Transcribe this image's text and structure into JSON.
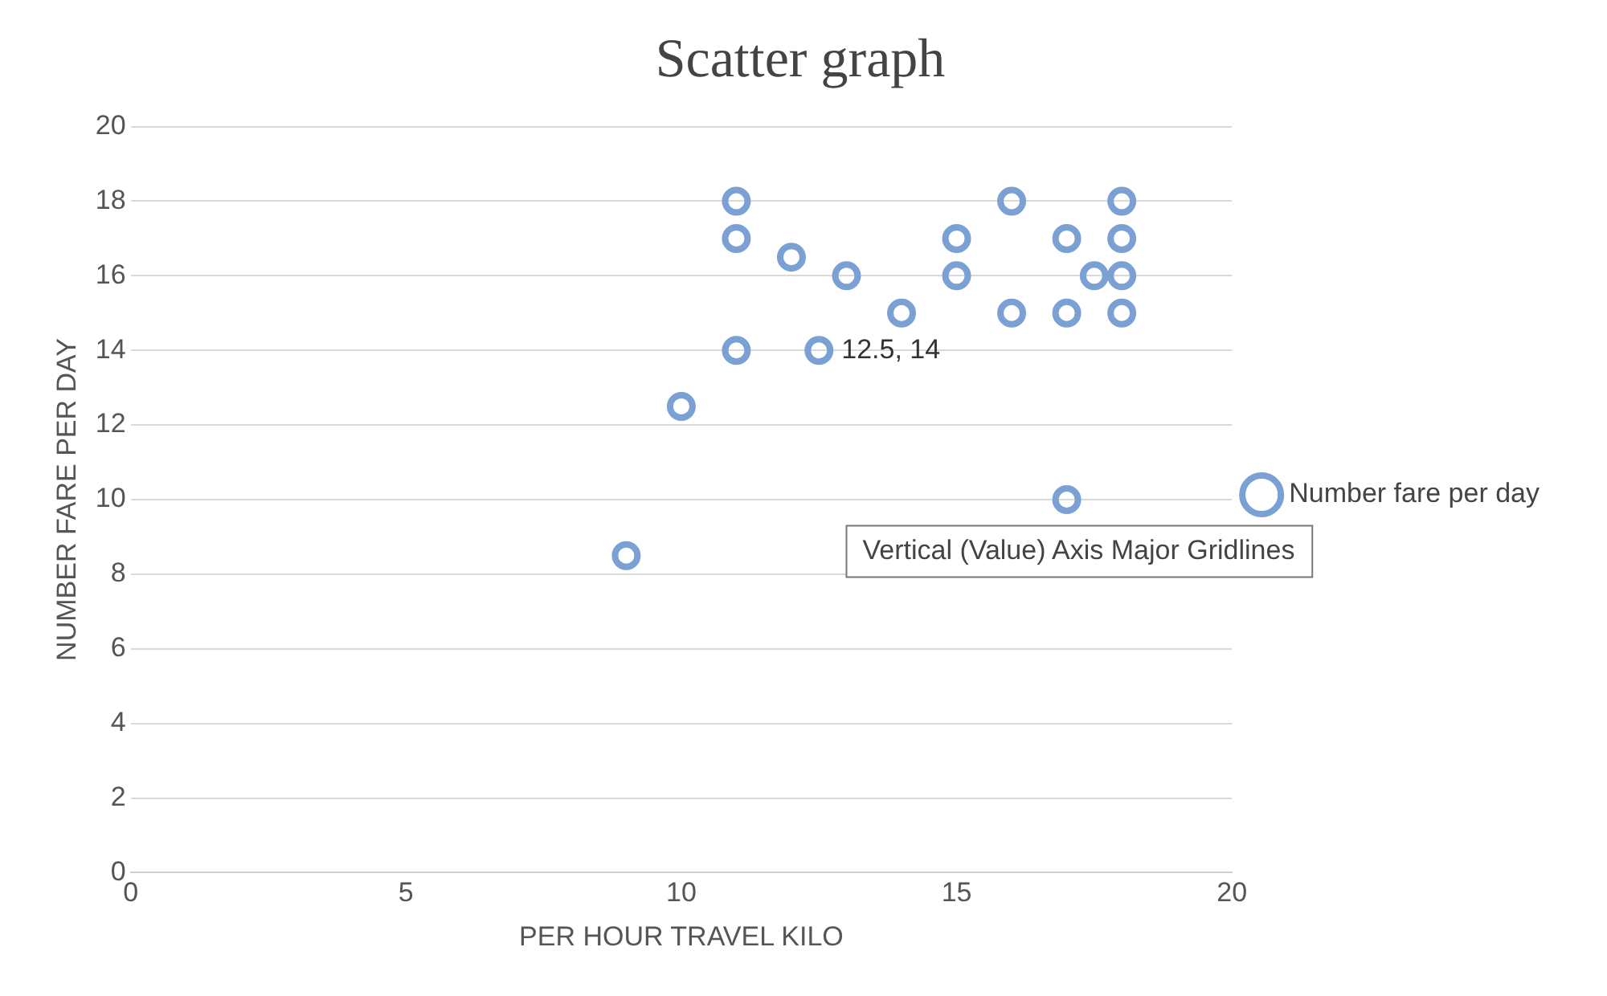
{
  "chart_data": {
    "type": "scatter",
    "title": "Scatter graph",
    "xlabel": "PER HOUR TRAVEL KILO",
    "ylabel": "NUMBER FARE PER DAY",
    "x": [
      9,
      10,
      11,
      11,
      11,
      12,
      12.5,
      13,
      14,
      15,
      15,
      16,
      16,
      17,
      17,
      17,
      17.5,
      18,
      18,
      18,
      18
    ],
    "series": [
      {
        "name": "Number fare per day",
        "color": "#7ba0d4",
        "values": [
          8.5,
          12.5,
          18,
          17,
          14,
          16.5,
          14,
          16,
          15,
          17,
          16,
          18,
          15,
          17,
          15,
          10,
          16,
          18,
          17,
          16,
          15
        ]
      }
    ],
    "xlim": [
      0,
      20
    ],
    "xticks": [
      0,
      5,
      10,
      15,
      20
    ],
    "ylim": [
      0,
      20
    ],
    "yticks": [
      0,
      2,
      4,
      6,
      8,
      10,
      12,
      14,
      16,
      18,
      20
    ],
    "grid": "y",
    "legend": "right",
    "marker": "circle",
    "annotations": [
      {
        "text": "12.5, 14",
        "x": 12.5,
        "y": 14
      },
      "Vertical (Value) Axis Major Gridlines"
    ]
  }
}
